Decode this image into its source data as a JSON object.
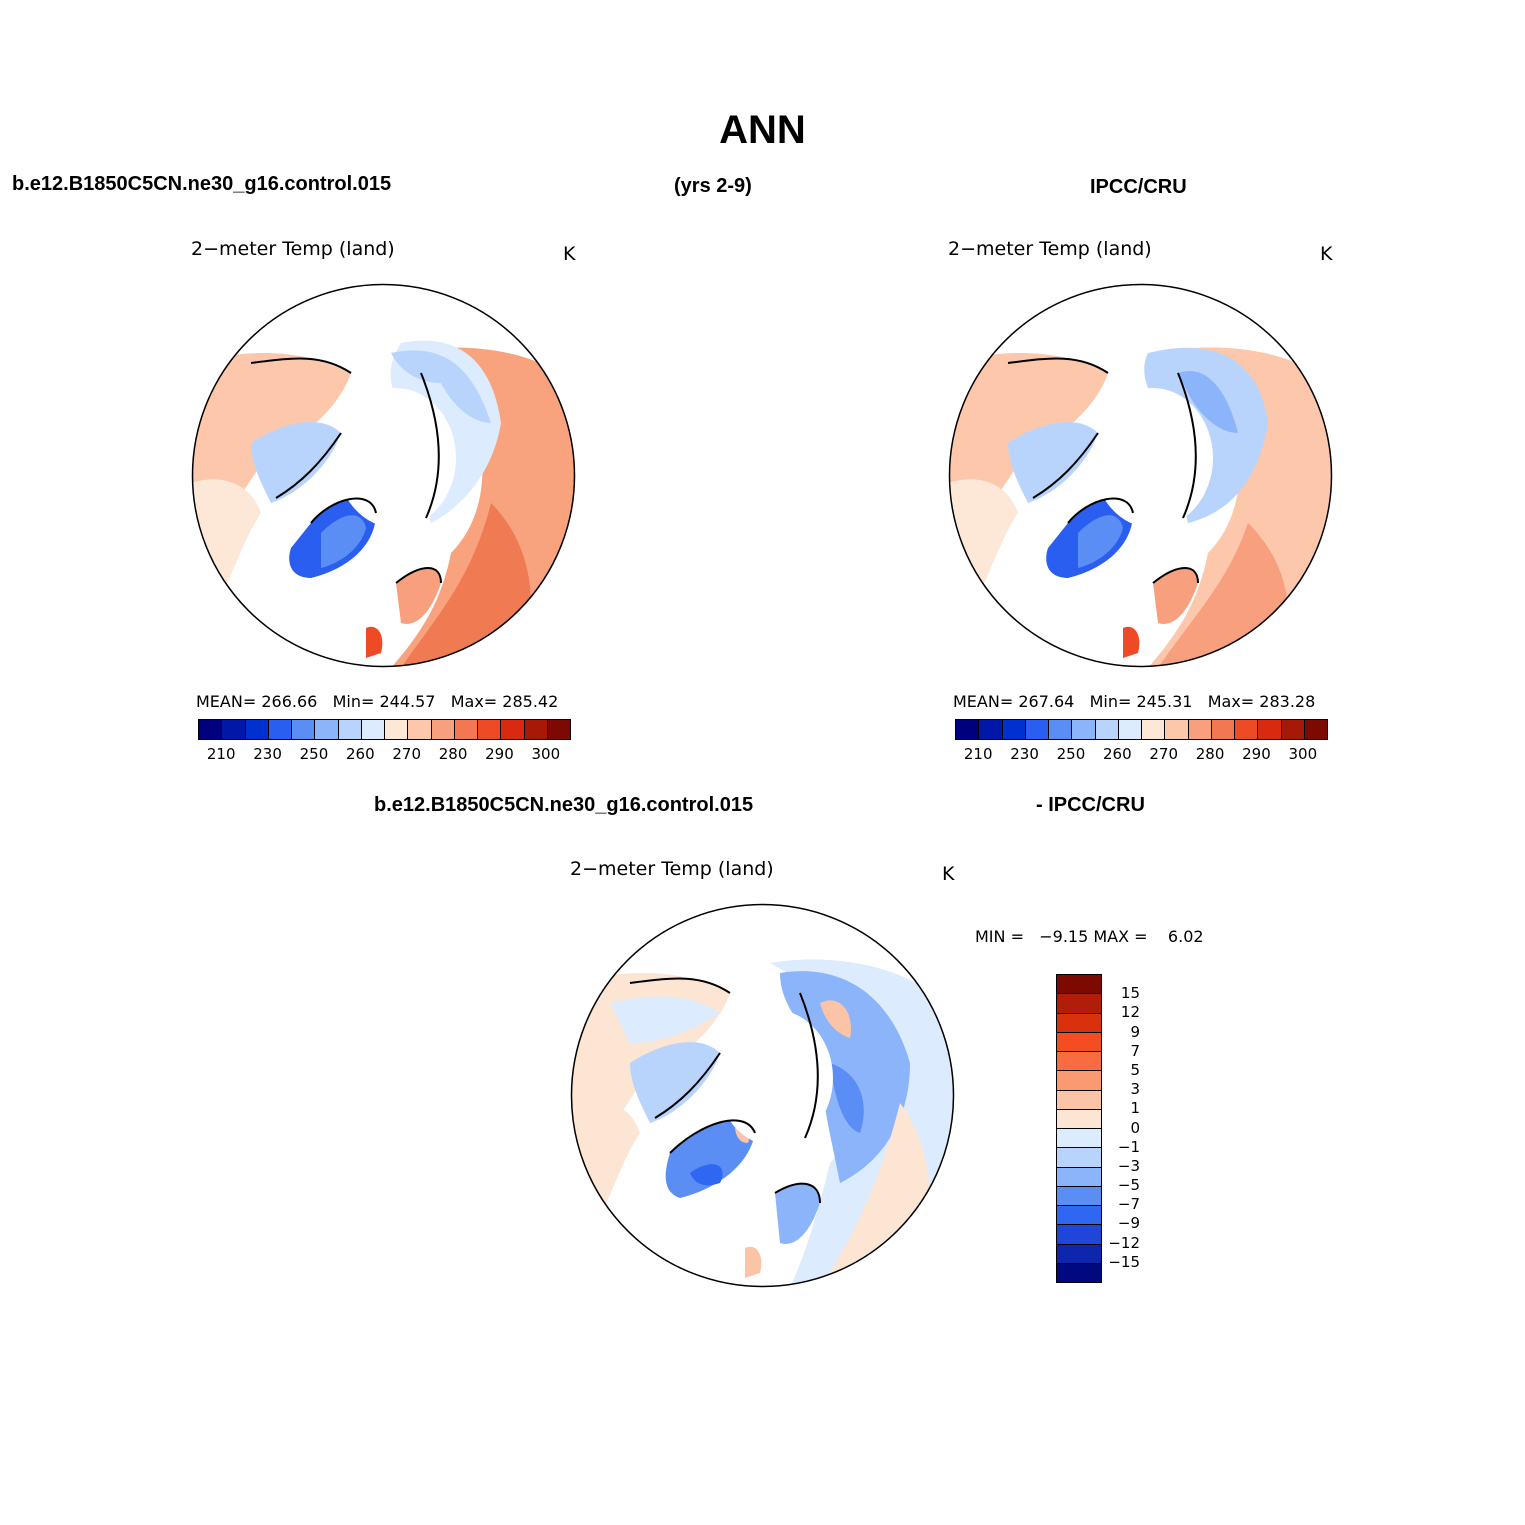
{
  "title": "ANN",
  "header": {
    "case": "b.e12.B1850C5CN.ne30_g16.control.015",
    "years": "(yrs 2-9)",
    "obs": "IPCC/CRU"
  },
  "diff_header": {
    "case": "b.e12.B1850C5CN.ne30_g16.control.015",
    "obs": "- IPCC/CRU"
  },
  "panels": [
    {
      "title": "2−meter Temp (land)",
      "units": "K",
      "mean_label": "MEAN=",
      "mean": "266.66",
      "min_label": "Min=",
      "min": "244.57",
      "max_label": "Max=",
      "max": "285.42"
    },
    {
      "title": "2−meter Temp (land)",
      "units": "K",
      "mean_label": "MEAN=",
      "mean": "267.64",
      "min_label": "Min=",
      "min": "245.31",
      "max_label": "Max=",
      "max": "283.28"
    },
    {
      "title": "2−meter Temp (land)",
      "units": "K",
      "min_label": "MIN =",
      "min": "−9.15",
      "max_label": "MAX =",
      "max": "6.02"
    }
  ],
  "colorbar_abs": {
    "colors": [
      "#00007f",
      "#0017a8",
      "#0030d0",
      "#2a5ef0",
      "#5b8ef5",
      "#8cb4fa",
      "#b8d4fd",
      "#dcebfd",
      "#fde8d8",
      "#fcc7ab",
      "#f8a07d",
      "#f37752",
      "#ee4a26",
      "#d92a0f",
      "#a81806",
      "#7d0a02"
    ],
    "labels": [
      "210",
      "230",
      "250",
      "260",
      "270",
      "280",
      "290",
      "300"
    ]
  },
  "colorbar_diff": {
    "colors": [
      "#7d0a02",
      "#b01e07",
      "#d9300e",
      "#f54d22",
      "#f86c40",
      "#fa9a72",
      "#fcc4a6",
      "#fde5d3",
      "#dcebfd",
      "#b8d4fd",
      "#8cb4fa",
      "#5b8ef5",
      "#2f67f2",
      "#1f46d8",
      "#0e25ae",
      "#00097f"
    ],
    "labels": [
      "15",
      "12",
      "9",
      "7",
      "5",
      "3",
      "1",
      "0",
      "−1",
      "−3",
      "−5",
      "−7",
      "−9",
      "−12",
      "−15"
    ]
  }
}
